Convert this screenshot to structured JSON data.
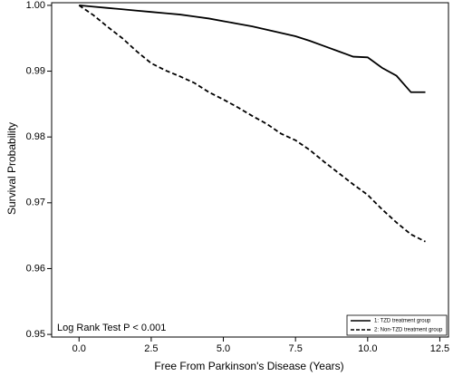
{
  "chart_data": {
    "type": "line",
    "x_label": "Free From Parkinson's Disease (Years)",
    "y_label": "Survival Probability",
    "annotation": "Log Rank Test P < 0.001",
    "x": [
      0,
      0.5,
      1,
      1.5,
      2,
      2.5,
      3,
      3.5,
      4,
      4.5,
      5,
      5.5,
      6,
      6.5,
      7,
      7.5,
      8,
      8.5,
      9,
      9.5,
      10,
      10.5,
      11,
      11.5,
      12
    ],
    "series": [
      {
        "name": "1: TZD treatment group",
        "color": "#000000",
        "dashed": false,
        "values": [
          1.0,
          0.9998,
          0.9996,
          0.9994,
          0.9992,
          0.999,
          0.9988,
          0.9986,
          0.9983,
          0.998,
          0.9976,
          0.9972,
          0.9968,
          0.9963,
          0.9958,
          0.9953,
          0.9946,
          0.9938,
          0.993,
          0.9922,
          0.9921,
          0.9905,
          0.9893,
          0.9868,
          0.9868
        ]
      },
      {
        "name": "2: Non-TZD treatment group",
        "color": "#000000",
        "dashed": true,
        "values": [
          1.0,
          0.9985,
          0.9967,
          0.995,
          0.993,
          0.9912,
          0.9901,
          0.9892,
          0.9882,
          0.9868,
          0.9857,
          0.9845,
          0.9832,
          0.982,
          0.9805,
          0.9795,
          0.978,
          0.9762,
          0.9745,
          0.9728,
          0.9712,
          0.969,
          0.967,
          0.9652,
          0.9641
        ]
      }
    ],
    "xlim": [
      -0.95,
      12.8
    ],
    "ylim": [
      0.9496,
      1.0004
    ],
    "xticks": [
      {
        "value": 0,
        "label": "0.0"
      },
      2.5,
      {
        "value": 5,
        "label": "5.0"
      },
      7.5,
      {
        "value": 10,
        "label": "10.0"
      },
      12.5
    ],
    "yticks": [
      0.95,
      0.96,
      0.97,
      0.98,
      0.99,
      {
        "value": 1,
        "label": "1.00"
      }
    ],
    "legend_position": "lower right"
  }
}
